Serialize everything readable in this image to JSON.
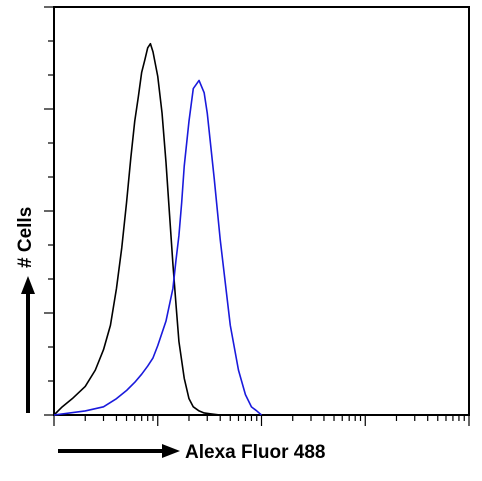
{
  "chart_data": {
    "type": "line",
    "title": "",
    "xlabel": "Alexa Fluor 488",
    "ylabel": "# Cells",
    "x_scale": "log",
    "xlim": [
      1,
      10000
    ],
    "ylim": [
      0,
      100
    ],
    "grid": false,
    "legend": "none",
    "series": [
      {
        "color": "#000000",
        "x": [
          1,
          1.2,
          1.5,
          2,
          2.5,
          3,
          3.5,
          4,
          4.5,
          5,
          5.5,
          6,
          6.5,
          7,
          7.5,
          8,
          8.5,
          9,
          10,
          11,
          12,
          13,
          14,
          15,
          16,
          18,
          20,
          22,
          25,
          28,
          32,
          40
        ],
        "y": [
          0,
          2,
          4,
          7,
          11,
          16,
          22,
          31,
          41,
          52,
          63,
          72,
          78,
          84,
          87,
          90,
          91,
          89,
          83,
          74,
          62,
          49,
          37,
          27,
          18,
          9,
          4,
          2,
          1,
          0.5,
          0.3,
          0
        ]
      },
      {
        "color": "#1a1adc",
        "x": [
          1,
          2,
          3,
          4,
          5,
          6,
          7,
          8,
          9,
          10,
          12,
          14,
          15,
          16,
          17,
          18,
          20,
          22,
          25,
          28,
          30,
          35,
          40,
          50,
          60,
          70,
          80,
          90,
          100
        ],
        "y": [
          0,
          1,
          2,
          4,
          6,
          8,
          10,
          12,
          14,
          17,
          23,
          31,
          38,
          44,
          52,
          61,
          72,
          80,
          82,
          79,
          74,
          58,
          43,
          22,
          11,
          5,
          2,
          1,
          0
        ]
      }
    ]
  }
}
